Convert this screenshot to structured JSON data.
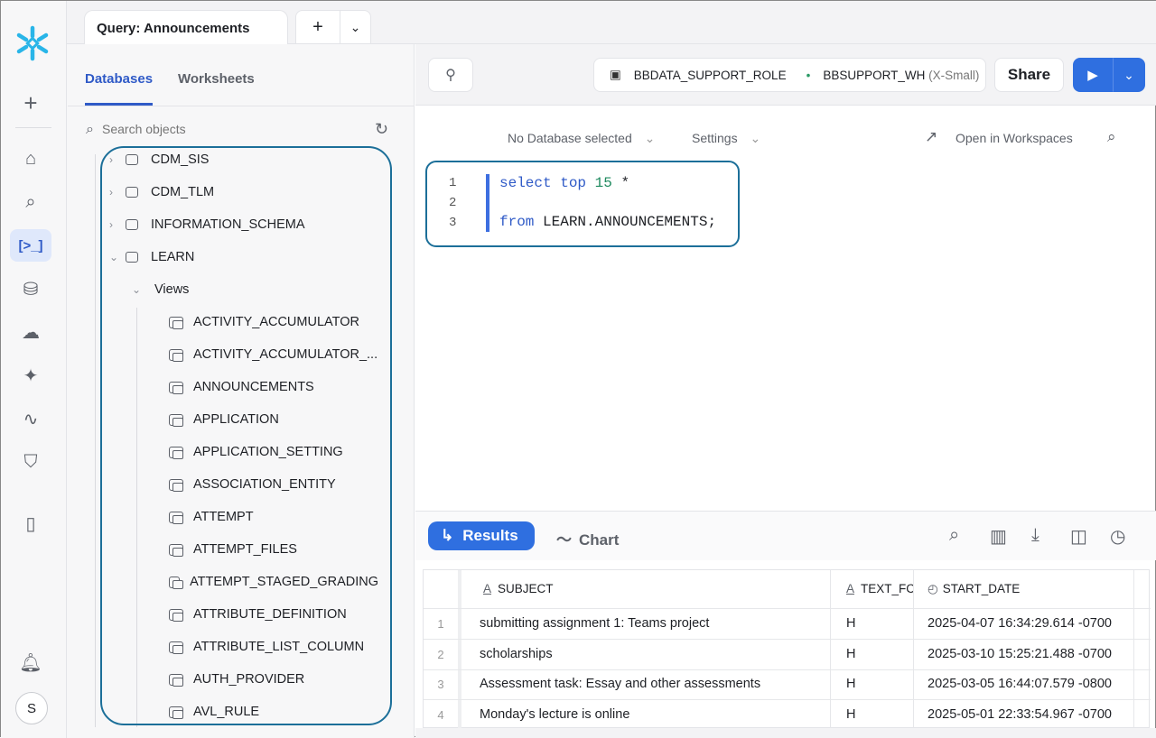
{
  "tab": {
    "title": "Query: Announcements",
    "add": "+",
    "more": "⌄"
  },
  "rail": {
    "items": [
      "home",
      "search",
      "worksheets",
      "data",
      "cloud",
      "ai",
      "activity",
      "governance",
      "panel"
    ],
    "avatar": "S"
  },
  "panel": {
    "tabs": [
      "Databases",
      "Worksheets"
    ],
    "search_placeholder": "Search objects",
    "schemas": [
      "CDM_SIS",
      "CDM_TLM",
      "INFORMATION_SCHEMA",
      "LEARN"
    ],
    "views_label": "Views",
    "views": [
      "ACTIVITY_ACCUMULATOR",
      "ACTIVITY_ACCUMULATOR_...",
      "ANNOUNCEMENTS",
      "APPLICATION",
      "APPLICATION_SETTING",
      "ASSOCIATION_ENTITY",
      "ATTEMPT",
      "ATTEMPT_FILES",
      "ATTEMPT_STAGED_GRADING",
      "ATTRIBUTE_DEFINITION",
      "ATTRIBUTE_LIST_COLUMN",
      "AUTH_PROVIDER",
      "AVL_RULE"
    ]
  },
  "toolbar": {
    "role": "BBDATA_SUPPORT_ROLE",
    "warehouse": "BBSUPPORT_WH",
    "size": "(X-Small)",
    "share": "Share"
  },
  "editor": {
    "database": "No Database selected",
    "settings": "Settings",
    "open_ws": "Open in Workspaces",
    "lines": [
      "1",
      "2",
      "3"
    ],
    "l1_kw": "select",
    "l1_top": "top",
    "l1_num": "15",
    "l1_rest": " *",
    "l3_kw": "from",
    "l3_rest": " LEARN.ANNOUNCEMENTS;"
  },
  "results": {
    "results_label": "Results",
    "chart_label": "Chart",
    "columns": [
      "SUBJECT",
      "TEXT_FC",
      "START_DATE"
    ],
    "rows": [
      [
        "1",
        "submitting assignment 1: Teams project",
        "H",
        "2025-04-07 16:34:29.614 -0700"
      ],
      [
        "2",
        "scholarships",
        "H",
        "2025-03-10 15:25:21.488 -0700"
      ],
      [
        "3",
        "Assessment task: Essay and other assessments",
        "H",
        "2025-03-05 16:44:07.579 -0800"
      ],
      [
        "4",
        "Monday's lecture is online",
        "H",
        "2025-05-01 22:33:54.967 -0700"
      ]
    ]
  },
  "colors": {
    "accent": "#2f6fe0",
    "highlight": "#1c6f99"
  }
}
